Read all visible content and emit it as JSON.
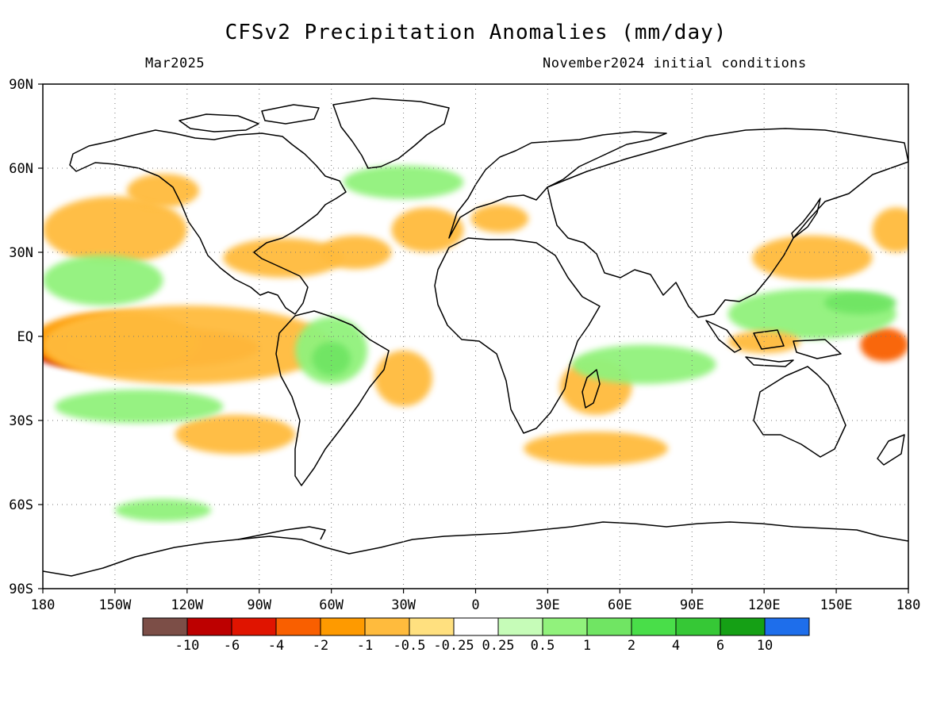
{
  "title": "CFSv2 Precipitation Anomalies (mm/day)",
  "subtitle_left": "Mar2025",
  "subtitle_right": "November2024 initial conditions",
  "map": {
    "lon_range": [
      -180,
      180
    ],
    "lat_range": [
      -90,
      90
    ],
    "x_ticks": [
      {
        "value": -180,
        "label": "180"
      },
      {
        "value": -150,
        "label": "150W"
      },
      {
        "value": -120,
        "label": "120W"
      },
      {
        "value": -90,
        "label": "90W"
      },
      {
        "value": -60,
        "label": "60W"
      },
      {
        "value": -30,
        "label": "30W"
      },
      {
        "value": 0,
        "label": "0"
      },
      {
        "value": 30,
        "label": "30E"
      },
      {
        "value": 60,
        "label": "60E"
      },
      {
        "value": 90,
        "label": "90E"
      },
      {
        "value": 120,
        "label": "120E"
      },
      {
        "value": 150,
        "label": "150E"
      },
      {
        "value": 180,
        "label": "180"
      }
    ],
    "y_ticks": [
      {
        "value": 90,
        "label": "90N"
      },
      {
        "value": 60,
        "label": "60N"
      },
      {
        "value": 30,
        "label": "30N"
      },
      {
        "value": 0,
        "label": "EQ"
      },
      {
        "value": -30,
        "label": "30S"
      },
      {
        "value": -60,
        "label": "60S"
      },
      {
        "value": -90,
        "label": "90S"
      }
    ],
    "grid": "dotted",
    "anomalies": [
      {
        "lon": -165,
        "lat": -5,
        "rlon": 20,
        "rlat": 6,
        "level": -8
      },
      {
        "lon": -130,
        "lat": -4,
        "rlon": 40,
        "rlat": 7,
        "level": -3
      },
      {
        "lon": -150,
        "lat": -2,
        "rlon": 35,
        "rlat": 11,
        "level": -1.5
      },
      {
        "lon": -120,
        "lat": -3,
        "rlon": 60,
        "rlat": 14,
        "level": -0.7
      },
      {
        "lon": 170,
        "lat": -3,
        "rlon": 10,
        "rlat": 6,
        "level": -3
      },
      {
        "lon": -150,
        "lat": 38,
        "rlon": 30,
        "rlat": 12,
        "level": -0.7
      },
      {
        "lon": -155,
        "lat": 20,
        "rlon": 25,
        "rlat": 9,
        "level": 0.7
      },
      {
        "lon": -130,
        "lat": 52,
        "rlon": 15,
        "rlat": 6,
        "level": -0.7
      },
      {
        "lon": -80,
        "lat": 28,
        "rlon": 25,
        "rlat": 7,
        "level": -0.7
      },
      {
        "lon": -50,
        "lat": 30,
        "rlon": 15,
        "rlat": 6,
        "level": -0.7
      },
      {
        "lon": -20,
        "lat": 38,
        "rlon": 15,
        "rlat": 8,
        "level": -0.7
      },
      {
        "lon": 10,
        "lat": 42,
        "rlon": 12,
        "rlat": 5,
        "level": -0.7
      },
      {
        "lon": 140,
        "lat": 28,
        "rlon": 25,
        "rlat": 8,
        "level": -0.7
      },
      {
        "lon": 175,
        "lat": 38,
        "rlon": 10,
        "rlat": 8,
        "level": -0.7
      },
      {
        "lon": -60,
        "lat": -5,
        "rlon": 15,
        "rlat": 12,
        "level": 0.7
      },
      {
        "lon": -60,
        "lat": -8,
        "rlon": 8,
        "rlat": 6,
        "level": 1.5
      },
      {
        "lon": -30,
        "lat": -15,
        "rlon": 12,
        "rlat": 10,
        "level": -0.7
      },
      {
        "lon": 50,
        "lat": -18,
        "rlon": 15,
        "rlat": 10,
        "level": -0.7
      },
      {
        "lon": 70,
        "lat": -10,
        "rlon": 30,
        "rlat": 7,
        "level": 0.7
      },
      {
        "lon": 140,
        "lat": 8,
        "rlon": 35,
        "rlat": 9,
        "level": 0.7
      },
      {
        "lon": 160,
        "lat": 12,
        "rlon": 15,
        "rlat": 4,
        "level": 1.5
      },
      {
        "lon": 120,
        "lat": -2,
        "rlon": 15,
        "rlat": 4,
        "level": -0.7
      },
      {
        "lon": -100,
        "lat": -35,
        "rlon": 25,
        "rlat": 7,
        "level": -0.7
      },
      {
        "lon": 50,
        "lat": -40,
        "rlon": 30,
        "rlat": 6,
        "level": -0.7
      },
      {
        "lon": -140,
        "lat": -25,
        "rlon": 35,
        "rlat": 6,
        "level": 0.7
      },
      {
        "lon": -130,
        "lat": -62,
        "rlon": 20,
        "rlat": 4,
        "level": 0.7
      },
      {
        "lon": -30,
        "lat": 55,
        "rlon": 25,
        "rlat": 6,
        "level": 0.7
      }
    ]
  },
  "colorbar": {
    "colors": [
      "#7c4e47",
      "#bd0000",
      "#e01400",
      "#f95f00",
      "#fe9a00",
      "#ffbb3d",
      "#ffe07f",
      "#ffffff",
      "#c6fcb8",
      "#91f27c",
      "#70e563",
      "#49de49",
      "#36c836",
      "#15a015",
      "#1e6eeb"
    ],
    "labels": [
      "-10",
      "-6",
      "-4",
      "-2",
      "-1",
      "-0.5",
      "-0.25",
      "0.25",
      "0.5",
      "1",
      "2",
      "4",
      "6",
      "10"
    ]
  }
}
